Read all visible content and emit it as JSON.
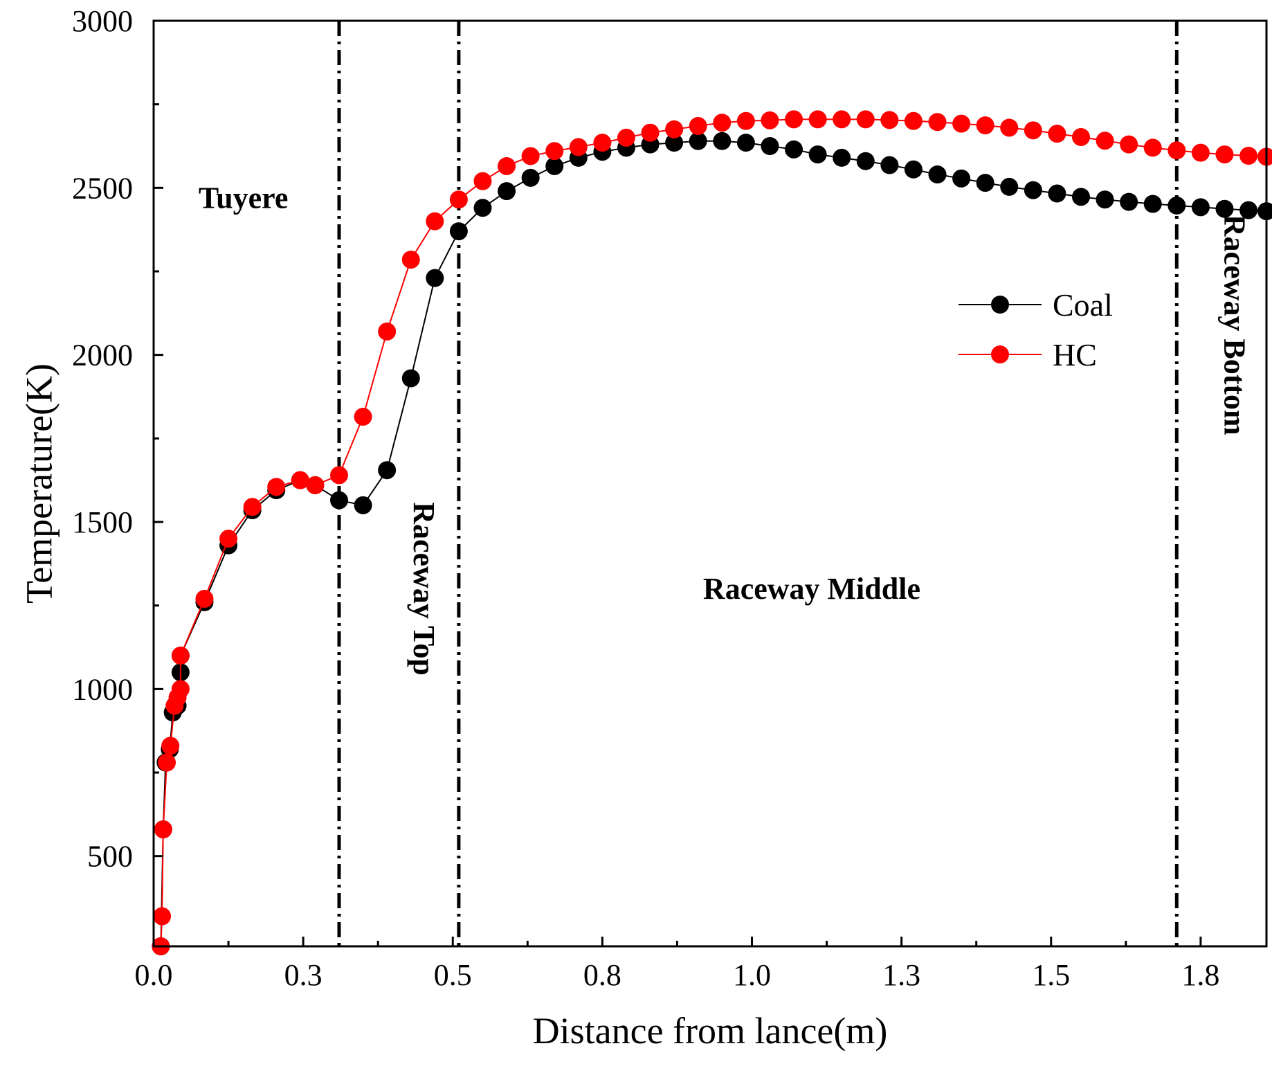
{
  "chart_data": {
    "type": "line",
    "xlabel": "Distance from lance(m)",
    "ylabel": "Temperature(K)",
    "xlim": [
      0,
      1.86
    ],
    "ylim": [
      230,
      3000
    ],
    "xticks": [
      {
        "value": 0.0,
        "label": "0.0"
      },
      {
        "value": 0.25,
        "label": "0.3"
      },
      {
        "value": 0.5,
        "label": "0.5"
      },
      {
        "value": 0.75,
        "label": "0.8"
      },
      {
        "value": 1.0,
        "label": "1.0"
      },
      {
        "value": 1.25,
        "label": "1.3"
      },
      {
        "value": 1.5,
        "label": "1.5"
      },
      {
        "value": 1.75,
        "label": "1.8"
      }
    ],
    "yticks": [
      {
        "value": 500,
        "label": "500"
      },
      {
        "value": 1000,
        "label": "1000"
      },
      {
        "value": 1500,
        "label": "1500"
      },
      {
        "value": 2000,
        "label": "2000"
      },
      {
        "value": 2500,
        "label": "2500"
      },
      {
        "value": 3000,
        "label": "3000"
      }
    ],
    "region_boundaries": [
      0.31,
      0.51,
      1.71
    ],
    "region_labels": [
      {
        "text": "Tuyere",
        "x": 0.15,
        "y": 2440,
        "orientation": "horizontal"
      },
      {
        "text": "Raceway Top",
        "x": 0.435,
        "y": 1300,
        "orientation": "vertical"
      },
      {
        "text": "Raceway Middle",
        "x": 1.1,
        "y": 1270,
        "orientation": "horizontal"
      },
      {
        "text": "Raceway Bottom",
        "x": 1.79,
        "y": 2090,
        "orientation": "vertical"
      }
    ],
    "legend_position": "upper-right",
    "series": [
      {
        "name": "Coal",
        "color": "#000000",
        "points": [
          [
            0.012,
            230
          ],
          [
            0.016,
            580
          ],
          [
            0.02,
            780
          ],
          [
            0.027,
            820
          ],
          [
            0.032,
            930
          ],
          [
            0.04,
            950
          ],
          [
            0.045,
            1050
          ],
          [
            0.045,
            1100
          ],
          [
            0.085,
            1260
          ],
          [
            0.125,
            1430
          ],
          [
            0.165,
            1535
          ],
          [
            0.205,
            1595
          ],
          [
            0.245,
            1625
          ],
          [
            0.27,
            1610
          ],
          [
            0.31,
            1565
          ],
          [
            0.35,
            1550
          ],
          [
            0.39,
            1655
          ],
          [
            0.43,
            1930
          ],
          [
            0.47,
            2230
          ],
          [
            0.51,
            2370
          ],
          [
            0.55,
            2440
          ],
          [
            0.59,
            2490
          ],
          [
            0.63,
            2530
          ],
          [
            0.67,
            2565
          ],
          [
            0.71,
            2590
          ],
          [
            0.75,
            2608
          ],
          [
            0.79,
            2620
          ],
          [
            0.83,
            2630
          ],
          [
            0.87,
            2635
          ],
          [
            0.91,
            2640
          ],
          [
            0.95,
            2640
          ],
          [
            0.99,
            2635
          ],
          [
            1.03,
            2625
          ],
          [
            1.07,
            2615
          ],
          [
            1.11,
            2600
          ],
          [
            1.15,
            2590
          ],
          [
            1.19,
            2580
          ],
          [
            1.23,
            2568
          ],
          [
            1.27,
            2555
          ],
          [
            1.31,
            2540
          ],
          [
            1.35,
            2528
          ],
          [
            1.39,
            2515
          ],
          [
            1.43,
            2503
          ],
          [
            1.47,
            2493
          ],
          [
            1.51,
            2483
          ],
          [
            1.55,
            2473
          ],
          [
            1.59,
            2465
          ],
          [
            1.63,
            2458
          ],
          [
            1.67,
            2452
          ],
          [
            1.71,
            2447
          ],
          [
            1.75,
            2442
          ],
          [
            1.79,
            2437
          ],
          [
            1.83,
            2433
          ],
          [
            1.86,
            2430
          ]
        ]
      },
      {
        "name": "HC",
        "color": "#ff0000",
        "points": [
          [
            0.012,
            230
          ],
          [
            0.014,
            320
          ],
          [
            0.016,
            580
          ],
          [
            0.022,
            780
          ],
          [
            0.028,
            830
          ],
          [
            0.035,
            950
          ],
          [
            0.04,
            975
          ],
          [
            0.045,
            1000
          ],
          [
            0.045,
            1100
          ],
          [
            0.085,
            1270
          ],
          [
            0.125,
            1450
          ],
          [
            0.165,
            1545
          ],
          [
            0.205,
            1605
          ],
          [
            0.245,
            1625
          ],
          [
            0.27,
            1610
          ],
          [
            0.31,
            1640
          ],
          [
            0.35,
            1815
          ],
          [
            0.39,
            2070
          ],
          [
            0.43,
            2285
          ],
          [
            0.47,
            2400
          ],
          [
            0.51,
            2465
          ],
          [
            0.55,
            2520
          ],
          [
            0.59,
            2565
          ],
          [
            0.63,
            2595
          ],
          [
            0.67,
            2610
          ],
          [
            0.71,
            2622
          ],
          [
            0.75,
            2635
          ],
          [
            0.79,
            2650
          ],
          [
            0.83,
            2665
          ],
          [
            0.87,
            2675
          ],
          [
            0.91,
            2685
          ],
          [
            0.95,
            2695
          ],
          [
            0.99,
            2700
          ],
          [
            1.03,
            2702
          ],
          [
            1.07,
            2705
          ],
          [
            1.11,
            2705
          ],
          [
            1.15,
            2705
          ],
          [
            1.19,
            2705
          ],
          [
            1.23,
            2703
          ],
          [
            1.27,
            2700
          ],
          [
            1.31,
            2697
          ],
          [
            1.35,
            2692
          ],
          [
            1.39,
            2687
          ],
          [
            1.43,
            2680
          ],
          [
            1.47,
            2672
          ],
          [
            1.51,
            2662
          ],
          [
            1.55,
            2652
          ],
          [
            1.59,
            2641
          ],
          [
            1.63,
            2630
          ],
          [
            1.67,
            2620
          ],
          [
            1.71,
            2612
          ],
          [
            1.75,
            2605
          ],
          [
            1.79,
            2600
          ],
          [
            1.83,
            2596
          ],
          [
            1.86,
            2593
          ]
        ]
      }
    ]
  }
}
